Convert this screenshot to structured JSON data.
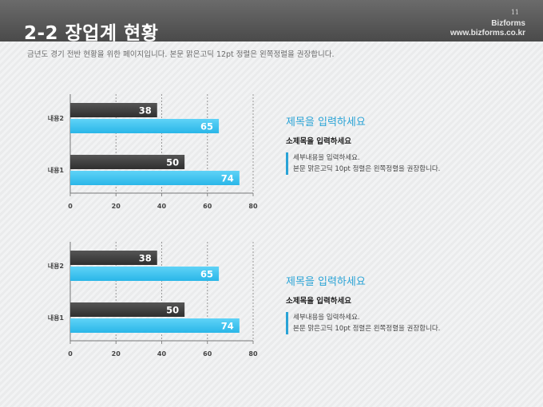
{
  "header": {
    "title": "2-2 장업계 현황",
    "page_number": "11",
    "brand_name": "Bizforms",
    "brand_url": "www.bizforms.co.kr"
  },
  "subtitle": "금년도 경기 전반 현황을 위한 페이지입니다. 본문 맑은고딕 12pt 정렬은 왼쪽정렬을 권장합니다.",
  "colors": {
    "dark_bar": "#2f2f2f",
    "blue_bar": "#29b6e8",
    "accent": "#29a3d6"
  },
  "chart_data": [
    {
      "type": "bar",
      "orientation": "horizontal",
      "categories": [
        "내용2",
        "내용1"
      ],
      "series": [
        {
          "values": [
            38,
            50
          ]
        },
        {
          "values": [
            65,
            74
          ]
        }
      ],
      "xlim": [
        0,
        80
      ],
      "xticks": [
        "0",
        "20",
        "40",
        "60",
        "80"
      ],
      "grid": "vertical dashed",
      "title": "",
      "xlabel": "",
      "ylabel": ""
    },
    {
      "type": "bar",
      "orientation": "horizontal",
      "categories": [
        "내용2",
        "내용1"
      ],
      "series": [
        {
          "values": [
            38,
            50
          ]
        },
        {
          "values": [
            65,
            74
          ]
        }
      ],
      "xlim": [
        0,
        80
      ],
      "xticks": [
        "0",
        "20",
        "40",
        "60",
        "80"
      ],
      "grid": "vertical dashed",
      "title": "",
      "xlabel": "",
      "ylabel": ""
    }
  ],
  "panels": [
    {
      "title": "제목을 입력하세요",
      "subtitle": "소제목을 입력하세요",
      "body_line1": "세부내용을 입력하세요.",
      "body_line2": "본문 맑은고딕 10pt 정렬은 왼쪽정렬을 권장합니다."
    },
    {
      "title": "제목을 입력하세요",
      "subtitle": "소제목을 입력하세요",
      "body_line1": "세부내용을 입력하세요.",
      "body_line2": "본문 맑은고딕 10pt 정렬은 왼쪽정렬을 권장합니다."
    }
  ]
}
